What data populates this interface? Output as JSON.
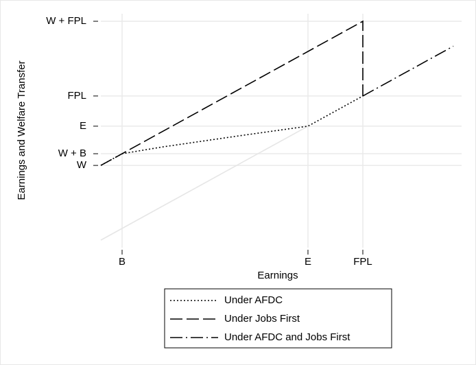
{
  "chart_data": {
    "type": "line",
    "xlabel": "Earnings",
    "ylabel": "Earnings and Welfare Transfer",
    "xlim": [
      0,
      526
    ],
    "ylim": [
      -20,
      600
    ],
    "xticks": [
      {
        "value": 31,
        "label": "B"
      },
      {
        "value": 302,
        "label": "E"
      },
      {
        "value": 382,
        "label": "FPL"
      }
    ],
    "yticks": [
      {
        "value": 198,
        "label": "W"
      },
      {
        "value": 229,
        "label": "W + B"
      },
      {
        "value": 302,
        "label": "E"
      },
      {
        "value": 382,
        "label": "FPL"
      },
      {
        "value": 580,
        "label": "W + FPL"
      }
    ],
    "grid": true,
    "legend": "bottom",
    "series": [
      {
        "color": "#e6e6e6",
        "dash": "solid",
        "x": [
          0,
          302
        ],
        "values": [
          0,
          302
        ]
      },
      {
        "name": "Under AFDC",
        "color": "#000000",
        "dash": "dotted",
        "x": [
          0,
          31,
          90,
          200,
          302,
          382
        ],
        "values": [
          198,
          229,
          247,
          276,
          302,
          382
        ]
      },
      {
        "name": "Under Jobs First",
        "color": "#000000",
        "dash": "long",
        "x": [
          0,
          31,
          382,
          382
        ],
        "values": [
          198,
          229,
          580,
          382
        ]
      },
      {
        "name": "Under AFDC and Jobs First",
        "color": "#000000",
        "dash": "dashdot",
        "x": [
          382,
          514
        ],
        "values": [
          382,
          514
        ]
      }
    ]
  }
}
